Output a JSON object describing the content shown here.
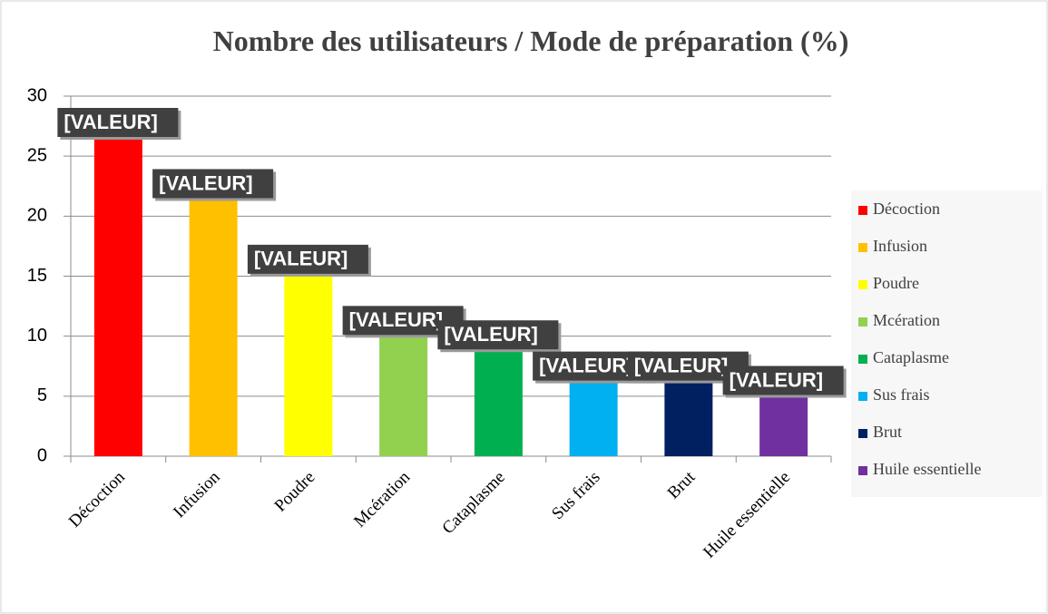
{
  "chart_data": {
    "type": "bar",
    "title": "Nombre des utilisateurs / Mode de préparation (%)",
    "categories": [
      "Décoction",
      "Infusion",
      "Poudre",
      "Mcération",
      "Cataplasme",
      "Sus frais",
      "Brut",
      "Huile essentielle"
    ],
    "values": [
      26.6,
      21.5,
      15.2,
      10.1,
      8.9,
      6.3,
      6.3,
      5.1
    ],
    "value_labels": [
      "[VALEUR]",
      "[VALEUR]",
      "[VALEUR]",
      "[VALEUR]",
      "[VALEUR]",
      "[VALEUR]",
      "[VALEUR]",
      "[VALEUR]"
    ],
    "colors": [
      "#ff0000",
      "#ffc000",
      "#ffff00",
      "#92d050",
      "#00b050",
      "#00b0f0",
      "#002060",
      "#7030a0"
    ],
    "ylim": [
      0,
      30
    ],
    "yticks": [
      0,
      5,
      10,
      15,
      20,
      25,
      30
    ],
    "grid": true,
    "legend": "right"
  }
}
